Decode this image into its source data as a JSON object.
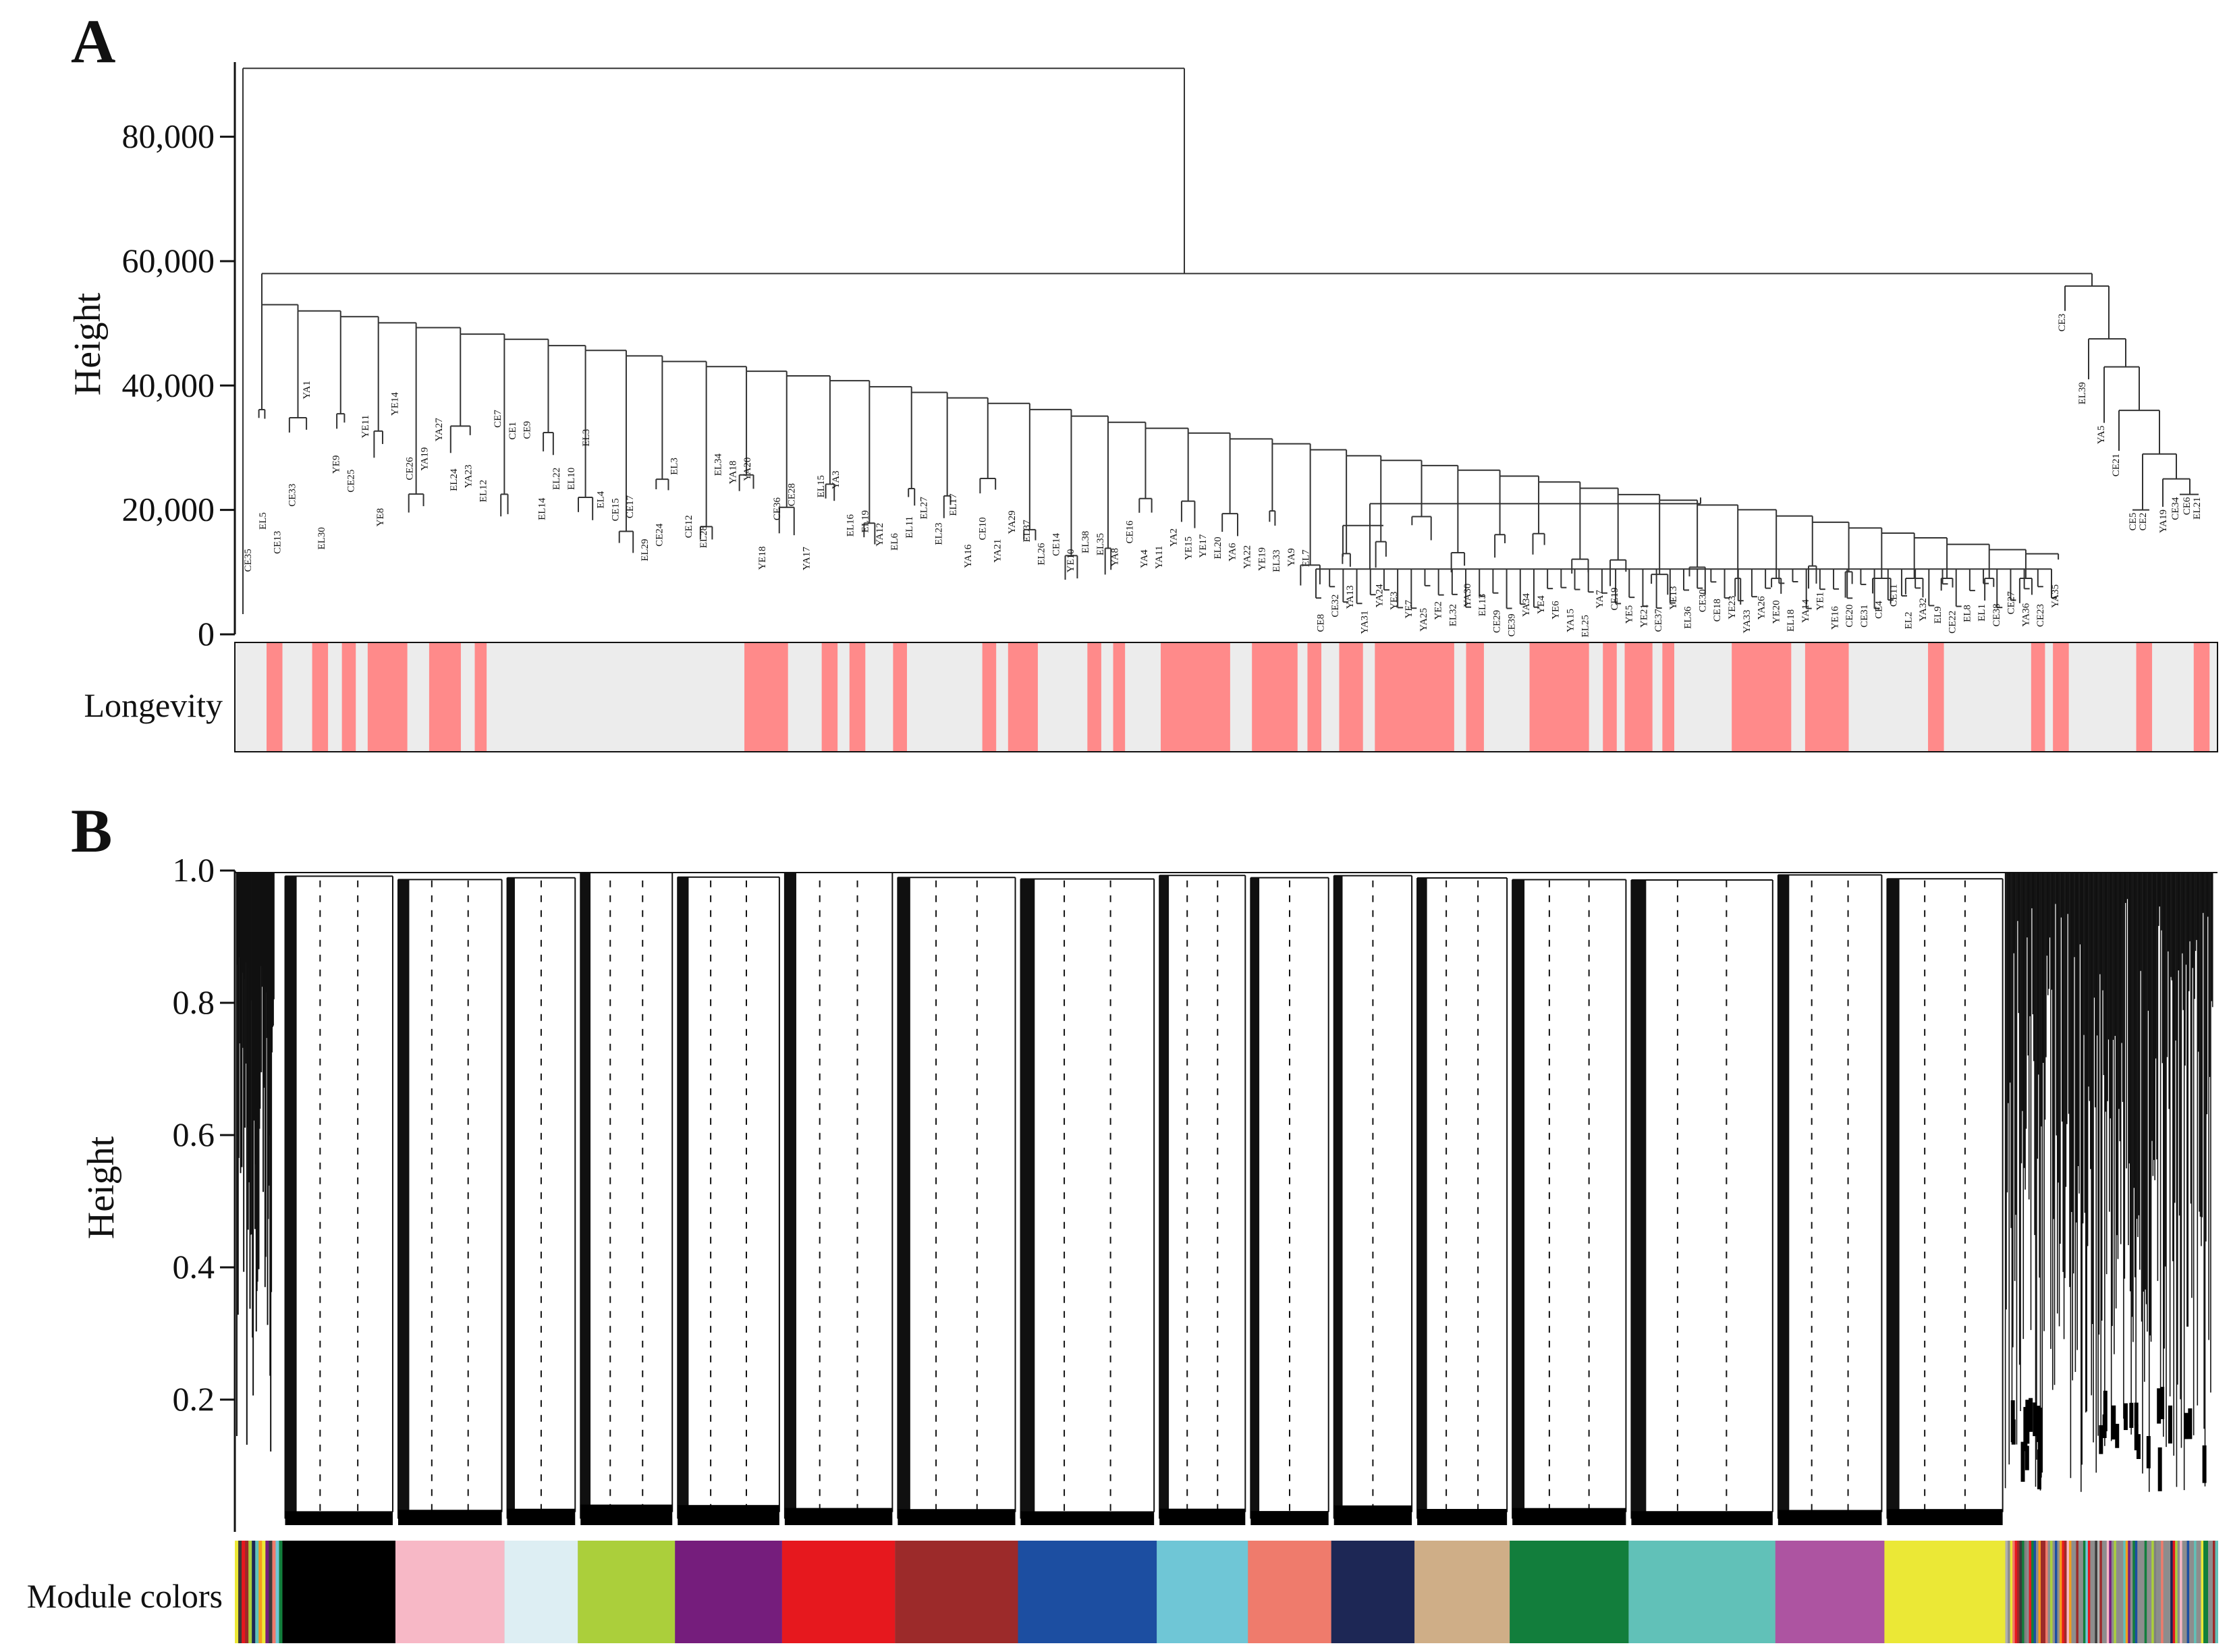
{
  "chart_data": [
    {
      "panel": "A",
      "type": "dendrogram",
      "title": "",
      "ylabel": "Height",
      "ylim": [
        0,
        92000
      ],
      "yticks": [
        {
          "value": 0,
          "label": "0"
        },
        {
          "value": 20000,
          "label": "20,000"
        },
        {
          "value": 40000,
          "label": "40,000"
        },
        {
          "value": 60000,
          "label": "60,000"
        },
        {
          "value": 80000,
          "label": "80,000"
        }
      ],
      "top_merge_height": 91000,
      "main_clusters_merge_height": 58000,
      "left_cluster_labels": [
        "CE35",
        "EL5",
        "CE13",
        "CE33",
        "YA1",
        "EL30",
        "YE9",
        "CE25",
        "YE11",
        "YE8",
        "YE14",
        "CE26",
        "YA19",
        "YA27",
        "EL24",
        "YA23",
        "EL12",
        "CE7",
        "CE1",
        "CE9",
        "EL14",
        "EL22",
        "EL10",
        "EL3",
        "EL4",
        "CE15",
        "CE17",
        "EL29",
        "CE24",
        "EL3",
        "CE12",
        "EL28",
        "EL34",
        "YA18",
        "YA20",
        "YE18",
        "CE36",
        "CE28",
        "YA17",
        "EL15",
        "YA3",
        "EL16",
        "EL19",
        "YA12",
        "EL6",
        "EL11",
        "EL27",
        "EL23",
        "EL17",
        "YA16",
        "CE10",
        "YA21",
        "YA29",
        "EL37",
        "EL26",
        "CE14",
        "YE10",
        "EL38",
        "EL35",
        "YA8",
        "CE16",
        "YA4",
        "YA11",
        "YA2",
        "YE15",
        "YE17",
        "EL20",
        "YA6",
        "YA22",
        "YE19",
        "EL33",
        "YA9",
        "EL7",
        "CE8",
        "CE32",
        "YA13",
        "YA31",
        "YA24",
        "YE3",
        "YE7",
        "YA25",
        "YE2",
        "EL32",
        "YA30",
        "EL13",
        "CE29",
        "CE39",
        "YA34",
        "YE4",
        "YE6",
        "YA15",
        "EL25",
        "YA7",
        "CE19",
        "YE5",
        "YE21",
        "CE37",
        "YE13",
        "EL36",
        "CE30",
        "CE18",
        "YE23",
        "YA33",
        "YA26",
        "YE20",
        "EL18",
        "YA14",
        "YE1",
        "YE16",
        "CE20",
        "CE31",
        "CE4",
        "CE11",
        "EL2",
        "YA32",
        "EL9",
        "CE22",
        "EL8",
        "EL1",
        "CE38",
        "CE27",
        "YA36",
        "CE23",
        "YA35"
      ],
      "right_cluster_labels": [
        "CE3",
        "EL39",
        "YA5",
        "CE21",
        "CE5",
        "CE2",
        "YA19",
        "CE34",
        "CE6",
        "EL21"
      ],
      "trait_bar": {
        "label": "Longevity",
        "colors": {
          "positive": "#ff8a8a",
          "negative": "#ececec"
        },
        "positive_spans_fraction": [
          [
            0.016,
            0.024
          ],
          [
            0.039,
            0.047
          ],
          [
            0.054,
            0.061
          ],
          [
            0.067,
            0.087
          ],
          [
            0.098,
            0.114
          ],
          [
            0.121,
            0.127
          ],
          [
            0.257,
            0.279
          ],
          [
            0.296,
            0.304
          ],
          [
            0.31,
            0.318
          ],
          [
            0.332,
            0.339
          ],
          [
            0.377,
            0.384
          ],
          [
            0.39,
            0.405
          ],
          [
            0.43,
            0.437
          ],
          [
            0.443,
            0.449
          ],
          [
            0.467,
            0.502
          ],
          [
            0.513,
            0.536
          ],
          [
            0.541,
            0.548
          ],
          [
            0.557,
            0.569
          ],
          [
            0.575,
            0.615
          ],
          [
            0.621,
            0.63
          ],
          [
            0.653,
            0.683
          ],
          [
            0.69,
            0.697
          ],
          [
            0.701,
            0.715
          ],
          [
            0.72,
            0.726
          ],
          [
            0.755,
            0.785
          ],
          [
            0.792,
            0.814
          ],
          [
            0.854,
            0.862
          ],
          [
            0.906,
            0.913
          ],
          [
            0.917,
            0.925
          ],
          [
            0.959,
            0.967
          ],
          [
            0.988,
            0.996
          ]
        ]
      }
    },
    {
      "panel": "B",
      "type": "dendrogram",
      "title": "",
      "ylabel": "Height",
      "ylim": [
        0,
        1.0
      ],
      "yticks": [
        {
          "value": 0.2,
          "label": "0.2"
        },
        {
          "value": 0.4,
          "label": "0.4"
        },
        {
          "value": 0.6,
          "label": "0.6"
        },
        {
          "value": 0.8,
          "label": "0.8"
        },
        {
          "value": 1.0,
          "label": "1.0"
        }
      ],
      "color_bar_label": "Module colors",
      "modules": [
        {
          "color": "#000000",
          "start": 0.024,
          "end": 0.081
        },
        {
          "color": "#f7b8c6",
          "start": 0.081,
          "end": 0.136
        },
        {
          "color": "#ddeef3",
          "start": 0.136,
          "end": 0.173
        },
        {
          "color": "#abcf3b",
          "start": 0.173,
          "end": 0.222
        },
        {
          "color": "#751d7c",
          "start": 0.222,
          "end": 0.276
        },
        {
          "color": "#e6181e",
          "start": 0.276,
          "end": 0.333
        },
        {
          "color": "#9c2a2a",
          "start": 0.333,
          "end": 0.395
        },
        {
          "color": "#1c4ea1",
          "start": 0.395,
          "end": 0.465
        },
        {
          "color": "#6fc6d6",
          "start": 0.465,
          "end": 0.511
        },
        {
          "color": "#ef7b6c",
          "start": 0.511,
          "end": 0.553
        },
        {
          "color": "#1d2755",
          "start": 0.553,
          "end": 0.595
        },
        {
          "color": "#cfae87",
          "start": 0.595,
          "end": 0.643
        },
        {
          "color": "#127e3c",
          "start": 0.643,
          "end": 0.703
        },
        {
          "color": "#61c1b8",
          "start": 0.703,
          "end": 0.777
        },
        {
          "color": "#ad54a1",
          "start": 0.777,
          "end": 0.832
        },
        {
          "color": "#ebe836",
          "start": 0.832,
          "end": 0.893
        }
      ]
    }
  ]
}
